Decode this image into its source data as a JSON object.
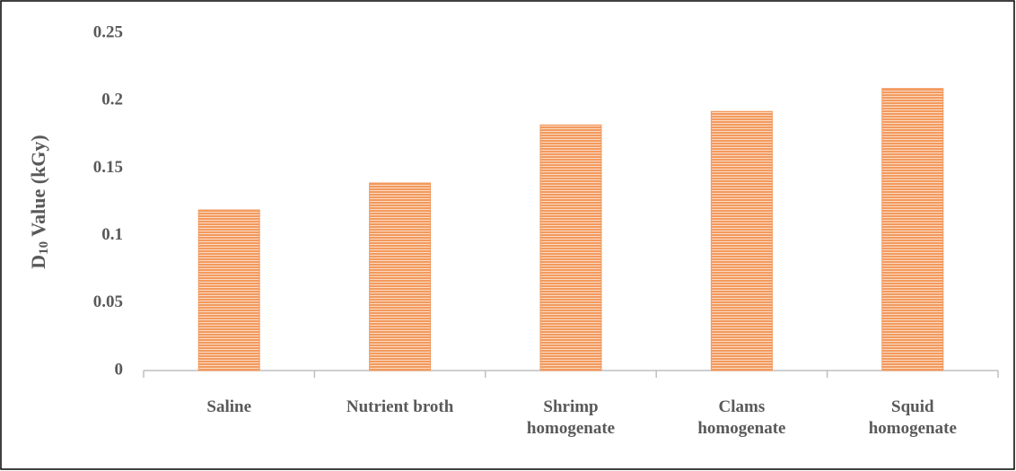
{
  "chart_data": {
    "type": "bar",
    "ylabel": [
      "D",
      "10",
      " Value (kGy)"
    ],
    "categories": [
      "Saline",
      "Nutrient broth",
      "Shrimp\nhomogenate",
      "Clams\nhomogenate",
      "Squid\nhomogenate"
    ],
    "values": [
      0.119,
      0.139,
      0.182,
      0.192,
      0.209
    ],
    "color": "#f29a5e",
    "ylim": [
      0,
      0.25
    ],
    "yticks": [
      0,
      0.05,
      0.1,
      0.15,
      0.2,
      0.25
    ],
    "grid": false
  }
}
